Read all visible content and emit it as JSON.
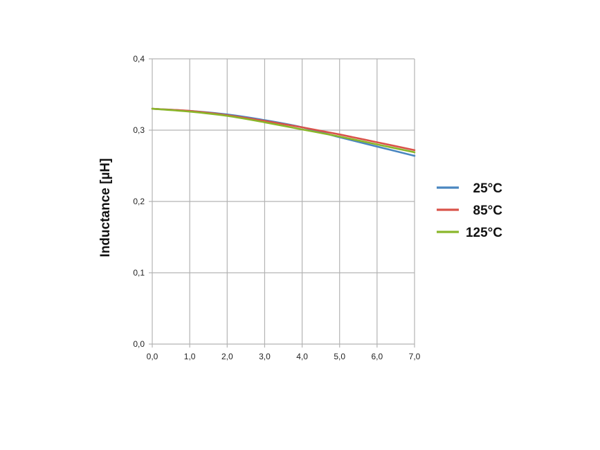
{
  "chart_data": {
    "type": "line",
    "title": "",
    "xlabel": "",
    "ylabel": "Inductance [µH]",
    "xlim": [
      0,
      7
    ],
    "ylim": [
      0,
      0.4
    ],
    "x_ticks": [
      "0,0",
      "1,0",
      "2,0",
      "3,0",
      "4,0",
      "5,0",
      "6,0",
      "7,0"
    ],
    "y_ticks": [
      "0,0",
      "0,1",
      "0,2",
      "0,3",
      "0,4"
    ],
    "grid": true,
    "legend_position": "right",
    "x": [
      0,
      1,
      2,
      3,
      4,
      5,
      6,
      7
    ],
    "series": [
      {
        "name": "25°C",
        "color": "#4a86c0",
        "values": [
          0.33,
          0.327,
          0.322,
          0.314,
          0.304,
          0.29,
          0.277,
          0.264
        ]
      },
      {
        "name": "85°C",
        "color": "#d9534a",
        "values": [
          0.33,
          0.327,
          0.321,
          0.313,
          0.304,
          0.294,
          0.283,
          0.272
        ]
      },
      {
        "name": "125°C",
        "color": "#8ab62a",
        "values": [
          0.33,
          0.326,
          0.32,
          0.311,
          0.301,
          0.291,
          0.28,
          0.269
        ]
      }
    ]
  }
}
